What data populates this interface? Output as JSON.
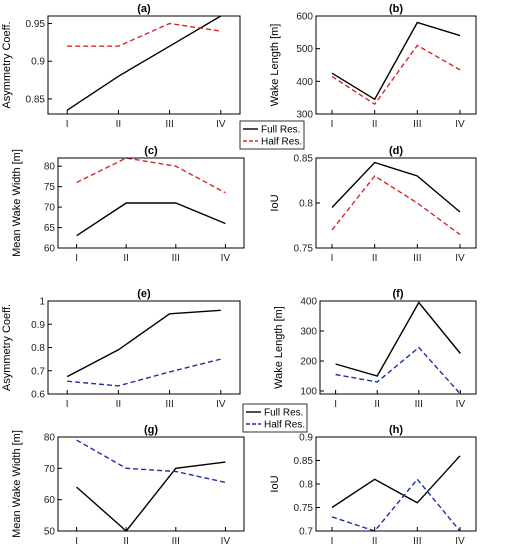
{
  "chart_data": [
    {
      "type": "line",
      "title": "(a)",
      "ylabel": "Asymmetry Coeff.",
      "categories": [
        "I",
        "II",
        "III",
        "IV"
      ],
      "ylim": [
        0.83,
        0.96
      ],
      "yticks": [
        0.85,
        0.9,
        0.95
      ],
      "tick_labels": [
        "0.85",
        "0.9",
        "0.95"
      ],
      "series": [
        {
          "name": "Full Res.",
          "color": "#000000",
          "dash": false,
          "values": [
            0.835,
            0.88,
            0.92,
            0.96
          ]
        },
        {
          "name": "Half Res.",
          "color": "#d62728",
          "dash": true,
          "values": [
            0.92,
            0.92,
            0.95,
            0.94
          ]
        }
      ]
    },
    {
      "type": "line",
      "title": "(b)",
      "ylabel": "Wake Length [m]",
      "categories": [
        "I",
        "II",
        "III",
        "IV"
      ],
      "ylim": [
        300,
        600
      ],
      "yticks": [
        300,
        400,
        500,
        600
      ],
      "tick_labels": [
        "300",
        "400",
        "500",
        "600"
      ],
      "series": [
        {
          "name": "Full Res.",
          "color": "#000000",
          "dash": false,
          "values": [
            425,
            345,
            580,
            540
          ]
        },
        {
          "name": "Half Res.",
          "color": "#d62728",
          "dash": true,
          "values": [
            415,
            330,
            510,
            435
          ]
        }
      ]
    },
    {
      "type": "line",
      "title": "(c)",
      "ylabel": "Mean Wake Width [m]",
      "categories": [
        "I",
        "II",
        "III",
        "IV"
      ],
      "ylim": [
        60,
        82
      ],
      "yticks": [
        60,
        65,
        70,
        75,
        80
      ],
      "tick_labels": [
        "60",
        "65",
        "70",
        "75",
        "80"
      ],
      "series": [
        {
          "name": "Full Res.",
          "color": "#000000",
          "dash": false,
          "values": [
            63,
            71,
            71,
            66
          ]
        },
        {
          "name": "Half Res.",
          "color": "#d62728",
          "dash": true,
          "values": [
            76,
            82,
            80,
            73.5
          ]
        }
      ]
    },
    {
      "type": "line",
      "title": "(d)",
      "ylabel": "IoU",
      "categories": [
        "I",
        "II",
        "III",
        "IV"
      ],
      "ylim": [
        0.75,
        0.85
      ],
      "yticks": [
        0.75,
        0.8,
        0.85
      ],
      "tick_labels": [
        "0.75",
        "0.8",
        "0.85"
      ],
      "series": [
        {
          "name": "Full Res.",
          "color": "#000000",
          "dash": false,
          "values": [
            0.795,
            0.845,
            0.83,
            0.79
          ]
        },
        {
          "name": "Half Res.",
          "color": "#d62728",
          "dash": true,
          "values": [
            0.77,
            0.83,
            0.8,
            0.765
          ]
        }
      ]
    },
    {
      "type": "line",
      "title": "(e)",
      "ylabel": "Asymmetry Coeff.",
      "categories": [
        "I",
        "II",
        "III",
        "IV"
      ],
      "ylim": [
        0.6,
        1.0
      ],
      "yticks": [
        0.6,
        0.7,
        0.8,
        0.9,
        1.0
      ],
      "tick_labels": [
        "0.6",
        "0.7",
        "0.8",
        "0.9",
        "1"
      ],
      "series": [
        {
          "name": "Full Res.",
          "color": "#000000",
          "dash": false,
          "values": [
            0.675,
            0.79,
            0.945,
            0.96
          ]
        },
        {
          "name": "Half Res.",
          "color": "#1f2fa8",
          "dash": true,
          "values": [
            0.655,
            0.635,
            0.695,
            0.75
          ]
        }
      ]
    },
    {
      "type": "line",
      "title": "(f)",
      "ylabel": "Wake Length [m]",
      "categories": [
        "I",
        "II",
        "III",
        "IV"
      ],
      "ylim": [
        90,
        400
      ],
      "yticks": [
        100,
        200,
        300,
        400
      ],
      "tick_labels": [
        "100",
        "200",
        "300",
        "400"
      ],
      "series": [
        {
          "name": "Full Res.",
          "color": "#000000",
          "dash": false,
          "values": [
            190,
            150,
            395,
            225
          ]
        },
        {
          "name": "Half Res.",
          "color": "#1f2fa8",
          "dash": true,
          "values": [
            155,
            130,
            245,
            90
          ]
        }
      ]
    },
    {
      "type": "line",
      "title": "(g)",
      "ylabel": "Mean Wake Width [m]",
      "categories": [
        "I",
        "II",
        "III",
        "IV"
      ],
      "ylim": [
        50,
        80
      ],
      "yticks": [
        50,
        60,
        70,
        80
      ],
      "tick_labels": [
        "50",
        "60",
        "70",
        "80"
      ],
      "series": [
        {
          "name": "Full Res.",
          "color": "#000000",
          "dash": false,
          "values": [
            64,
            50,
            70,
            72
          ]
        },
        {
          "name": "Half Res.",
          "color": "#1f2fa8",
          "dash": true,
          "values": [
            79,
            70,
            69,
            65.5
          ]
        }
      ]
    },
    {
      "type": "line",
      "title": "(h)",
      "ylabel": "IoU",
      "categories": [
        "I",
        "II",
        "III",
        "IV"
      ],
      "ylim": [
        0.7,
        0.9
      ],
      "yticks": [
        0.7,
        0.75,
        0.8,
        0.85,
        0.9
      ],
      "tick_labels": [
        "0.7",
        "0.75",
        "0.8",
        "0.85",
        "0.9"
      ],
      "series": [
        {
          "name": "Full Res.",
          "color": "#000000",
          "dash": false,
          "values": [
            0.75,
            0.81,
            0.76,
            0.86
          ]
        },
        {
          "name": "Half Res.",
          "color": "#1f2fa8",
          "dash": true,
          "values": [
            0.73,
            0.7,
            0.81,
            0.7
          ]
        }
      ]
    }
  ],
  "legends": [
    {
      "placement": "between top panels",
      "entries": [
        {
          "label": "Full Res.",
          "color": "#000000",
          "dash": false
        },
        {
          "label": "Half Res.",
          "color": "#d62728",
          "dash": true
        }
      ]
    },
    {
      "placement": "between bottom panels",
      "entries": [
        {
          "label": "Full Res.",
          "color": "#000000",
          "dash": false
        },
        {
          "label": "Half Res.",
          "color": "#1f2fa8",
          "dash": true
        }
      ]
    }
  ]
}
